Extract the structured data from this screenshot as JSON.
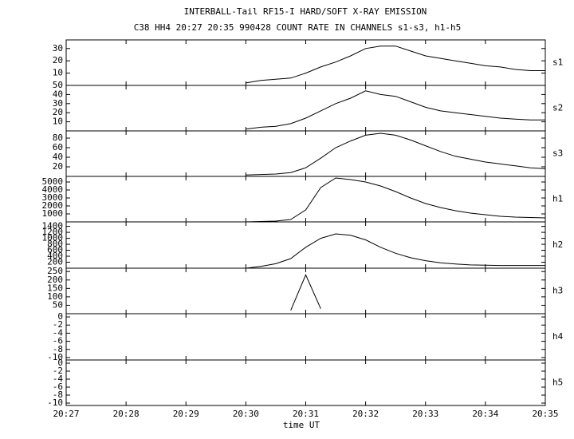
{
  "chart_data": {
    "type": "line",
    "title": "INTERBALL-Tail RF15-I HARD/SOFT X-RAY EMISSION",
    "subtitle": "C38 HH4 20:27 20:35 990428  COUNT RATE IN CHANNELS s1-s3, h1-h5",
    "xlabel": "time UT",
    "xlim": [
      0,
      8
    ],
    "xticks": [
      {
        "value": 0,
        "label": "20:27"
      },
      {
        "value": 1,
        "label": "20:28"
      },
      {
        "value": 2,
        "label": "20:29"
      },
      {
        "value": 3,
        "label": "20:30"
      },
      {
        "value": 4,
        "label": "20:31"
      },
      {
        "value": 5,
        "label": "20:32"
      },
      {
        "value": 6,
        "label": "20:33"
      },
      {
        "value": 7,
        "label": "20:34"
      },
      {
        "value": 8,
        "label": "20:35"
      }
    ],
    "color": "#000000",
    "x": [
      3,
      3.25,
      3.5,
      3.75,
      4,
      4.25,
      4.5,
      4.75,
      5,
      5.25,
      5.5,
      5.75,
      6,
      6.25,
      6.5,
      6.75,
      7,
      7.25,
      7.5,
      7.75,
      8
    ],
    "series": [
      {
        "name": "s1",
        "ylim": [
          0,
          37
        ],
        "yticks": [
          10,
          20,
          30
        ],
        "values": [
          2,
          4,
          5,
          6,
          10,
          15,
          19,
          24,
          30,
          32,
          32,
          28,
          24,
          22,
          20,
          18,
          16,
          15,
          13,
          12,
          12
        ]
      },
      {
        "name": "s2",
        "ylim": [
          0,
          50
        ],
        "yticks": [
          10,
          20,
          30,
          40,
          50
        ],
        "values": [
          2,
          4,
          5,
          8,
          14,
          22,
          30,
          36,
          44,
          40,
          38,
          32,
          26,
          22,
          20,
          18,
          16,
          14,
          13,
          12,
          12
        ]
      },
      {
        "name": "s3",
        "ylim": [
          0,
          95
        ],
        "yticks": [
          20,
          40,
          60,
          80
        ],
        "values": [
          3,
          4,
          5,
          8,
          18,
          38,
          60,
          74,
          86,
          90,
          86,
          76,
          64,
          52,
          42,
          36,
          30,
          26,
          22,
          18,
          16
        ]
      },
      {
        "name": "h1",
        "ylim": [
          0,
          5700
        ],
        "yticks": [
          1000,
          2000,
          3000,
          4000,
          5000
        ],
        "values": [
          0,
          50,
          100,
          300,
          1500,
          4300,
          5500,
          5300,
          5000,
          4500,
          3800,
          3000,
          2300,
          1800,
          1400,
          1100,
          900,
          700,
          600,
          550,
          500
        ]
      },
      {
        "name": "h2",
        "ylim": [
          0,
          1550
        ],
        "yticks": [
          200,
          400,
          600,
          800,
          1000,
          1200,
          1400
        ],
        "values": [
          0,
          60,
          150,
          320,
          700,
          1000,
          1150,
          1100,
          950,
          700,
          500,
          350,
          250,
          180,
          140,
          110,
          100,
          90,
          90,
          90,
          90
        ]
      },
      {
        "name": "h3",
        "ylim": [
          0,
          270
        ],
        "yticks": [
          50,
          100,
          150,
          200,
          250
        ],
        "values": [
          null,
          null,
          null,
          20,
          230,
          30,
          null,
          null,
          null,
          null,
          null,
          null,
          null,
          null,
          null,
          null,
          null,
          null,
          null,
          null,
          null
        ]
      },
      {
        "name": "h4",
        "ylim": [
          -10.6,
          0.8
        ],
        "yticks": [
          -10,
          -8,
          -6,
          -4,
          -2,
          0
        ],
        "values": [
          null,
          null,
          null,
          null,
          null,
          null,
          null,
          null,
          null,
          null,
          null,
          null,
          null,
          null,
          null,
          null,
          null,
          null,
          null,
          null,
          null
        ]
      },
      {
        "name": "h5",
        "ylim": [
          -10.6,
          0.8
        ],
        "yticks": [
          -10,
          -8,
          -6,
          -4,
          -2,
          0
        ],
        "values": [
          null,
          null,
          null,
          null,
          null,
          null,
          null,
          null,
          null,
          null,
          null,
          null,
          null,
          null,
          null,
          null,
          null,
          null,
          null,
          null,
          null
        ]
      }
    ]
  }
}
